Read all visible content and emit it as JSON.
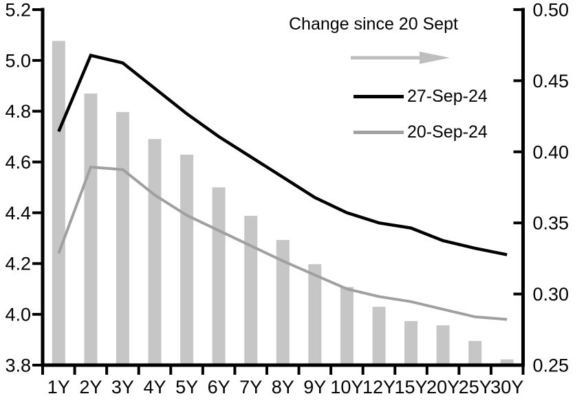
{
  "chart_data": {
    "type": "combo-bar-line",
    "categories": [
      "1Y",
      "2Y",
      "3Y",
      "4Y",
      "5Y",
      "6Y",
      "7Y",
      "8Y",
      "9Y",
      "10Y",
      "12Y",
      "15Y",
      "20Y",
      "25Y",
      "30Y"
    ],
    "series": [
      {
        "name": "Change since 20 Sept",
        "type": "bar",
        "axis": "right",
        "color": "#C6C6C6",
        "values": [
          0.478,
          0.441,
          0.428,
          0.409,
          0.398,
          0.375,
          0.355,
          0.338,
          0.321,
          0.305,
          0.291,
          0.281,
          0.278,
          0.267,
          0.254
        ]
      },
      {
        "name": "27-Sep-24",
        "type": "line",
        "axis": "left",
        "color": "#000000",
        "values": [
          4.72,
          5.02,
          4.99,
          4.89,
          4.79,
          4.7,
          4.62,
          4.54,
          4.46,
          4.4,
          4.36,
          4.34,
          4.29,
          4.26,
          4.235
        ]
      },
      {
        "name": "20-Sep-24",
        "type": "line",
        "axis": "left",
        "color": "#A0A0A0",
        "values": [
          4.24,
          4.58,
          4.57,
          4.47,
          4.39,
          4.33,
          4.27,
          4.21,
          4.155,
          4.1,
          4.07,
          4.05,
          4.02,
          3.99,
          3.98
        ]
      }
    ],
    "left_axis": {
      "min": 3.8,
      "max": 5.2,
      "tick_step": 0.2,
      "tick_labels": [
        "5.2",
        "5.0",
        "4.8",
        "4.6",
        "4.4",
        "4.2",
        "4.0",
        "3.8"
      ]
    },
    "right_axis": {
      "min": 0.25,
      "max": 0.5,
      "tick_step": 0.05,
      "tick_labels": [
        "0.50",
        "0.45",
        "0.40",
        "0.35",
        "0.30",
        "0.25"
      ]
    },
    "legend": {
      "title": "Change since 20 Sept",
      "arrow_icon": "right-arrow",
      "arrow_color": "#BEBEBE",
      "entries": [
        {
          "label": "27-Sep-24",
          "color": "#000000"
        },
        {
          "label": "20-Sep-24",
          "color": "#A0A0A0"
        }
      ]
    },
    "grid": false,
    "legend_position": "top-right-inside"
  }
}
